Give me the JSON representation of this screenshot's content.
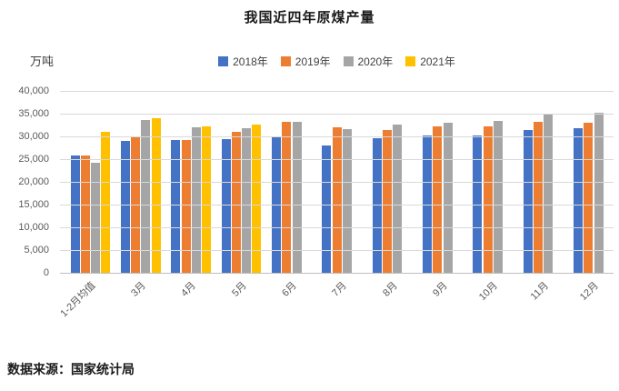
{
  "header": {
    "title": "我国近四年原煤产量"
  },
  "chart_data": {
    "type": "bar",
    "title": "我国近四年原煤产量",
    "unit_label": "万吨",
    "ylabel": "万吨",
    "ylim": [
      0,
      40000
    ],
    "ytick_step": 5000,
    "grid": true,
    "legend_position": "top-center",
    "categories": [
      "1-2月均值",
      "3月",
      "4月",
      "5月",
      "6月",
      "7月",
      "8月",
      "9月",
      "10月",
      "11月",
      "12月"
    ],
    "series": [
      {
        "name": "2018年",
        "color": "#4472C4",
        "values": [
          25800,
          29000,
          29300,
          29500,
          29800,
          28100,
          29700,
          30300,
          30300,
          31500,
          31900
        ]
      },
      {
        "name": "2019年",
        "color": "#ED7D31",
        "values": [
          25800,
          29800,
          29300,
          31100,
          33300,
          32100,
          31500,
          32200,
          32300,
          33200,
          33000
        ]
      },
      {
        "name": "2020年",
        "color": "#A5A5A5",
        "values": [
          24300,
          33700,
          32100,
          31900,
          33300,
          31700,
          32600,
          33000,
          33500,
          34800,
          35200
        ]
      },
      {
        "name": "2021年",
        "color": "#FFC000",
        "values": [
          31000,
          34000,
          32200,
          32600,
          null,
          null,
          null,
          null,
          null,
          null,
          null
        ]
      }
    ]
  },
  "footer": {
    "source": "数据来源：国家统计局"
  },
  "style": {
    "gridline_color": "#D9D9D9",
    "axis_line_color": "#BFBFBF",
    "tick_label_color": "#595959"
  }
}
